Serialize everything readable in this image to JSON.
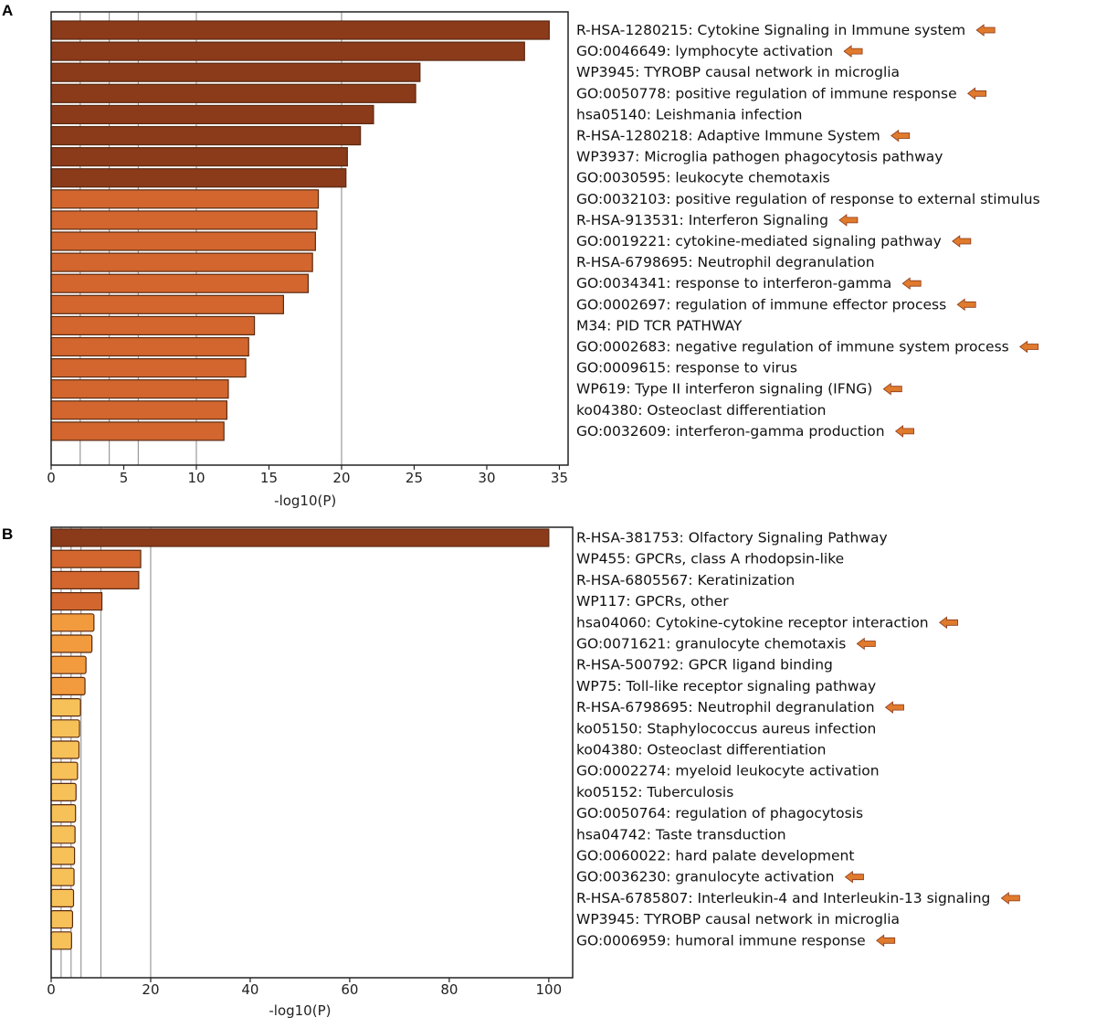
{
  "panels": {
    "a_letter": "A",
    "b_letter": "B"
  },
  "colors": {
    "dark": "#8b3a1a",
    "mid": "#d2662e",
    "light": "#f29b3e",
    "pale": "#f7c159",
    "arrow": "#e07a2c",
    "grid": "#9a9a9a"
  },
  "chart_data": [
    {
      "type": "bar",
      "orientation": "horizontal",
      "panel": "A",
      "xlabel": "-log10(P)",
      "xlim": [
        0,
        35.6
      ],
      "xticks": [
        0,
        5,
        10,
        15,
        20,
        25,
        30,
        35
      ],
      "gridlines": [
        2,
        4,
        6,
        10,
        20
      ],
      "categories": [
        "R-HSA-1280215: Cytokine Signaling in Immune system",
        "GO:0046649: lymphocyte activation",
        "WP3945: TYROBP causal network in microglia",
        "GO:0050778: positive regulation of immune response",
        "hsa05140: Leishmania infection",
        "R-HSA-1280218: Adaptive Immune System",
        "WP3937: Microglia pathogen phagocytosis pathway",
        "GO:0030595: leukocyte chemotaxis",
        "GO:0032103: positive regulation of response to external stimulus",
        "R-HSA-913531: Interferon Signaling",
        "GO:0019221: cytokine-mediated signaling pathway",
        "R-HSA-6798695: Neutrophil degranulation",
        "GO:0034341: response to interferon-gamma",
        "GO:0002697: regulation of immune effector process",
        "M34: PID TCR PATHWAY",
        "GO:0002683: negative regulation of immune system process",
        "GO:0009615: response to virus",
        "WP619: Type II interferon signaling (IFNG)",
        "ko04380: Osteoclast differentiation",
        "GO:0032609: interferon-gamma production"
      ],
      "values": [
        34.3,
        32.6,
        25.4,
        25.1,
        22.2,
        21.3,
        20.4,
        20.3,
        18.4,
        18.3,
        18.2,
        18.0,
        17.7,
        16.0,
        14.0,
        13.6,
        13.4,
        12.2,
        12.1,
        11.9
      ],
      "color_class": [
        "dark",
        "dark",
        "dark",
        "dark",
        "dark",
        "dark",
        "dark",
        "dark",
        "mid",
        "mid",
        "mid",
        "mid",
        "mid",
        "mid",
        "mid",
        "mid",
        "mid",
        "mid",
        "mid",
        "mid"
      ],
      "arrow": [
        true,
        true,
        false,
        true,
        false,
        true,
        false,
        false,
        false,
        true,
        true,
        false,
        true,
        true,
        false,
        true,
        false,
        true,
        false,
        true
      ]
    },
    {
      "type": "bar",
      "orientation": "horizontal",
      "panel": "B",
      "xlabel": "-log10(P)",
      "xlim": [
        0,
        104.8
      ],
      "xticks": [
        0,
        20,
        40,
        60,
        80,
        100
      ],
      "gridlines": [
        2,
        4,
        6,
        10,
        20
      ],
      "categories": [
        "R-HSA-381753: Olfactory Signaling Pathway",
        "WP455: GPCRs, class A rhodopsin-like",
        "R-HSA-6805567: Keratinization",
        "WP117: GPCRs, other",
        "hsa04060: Cytokine-cytokine receptor interaction",
        "GO:0071621: granulocyte chemotaxis",
        "R-HSA-500792: GPCR ligand binding",
        "WP75: Toll-like receptor signaling pathway",
        "R-HSA-6798695: Neutrophil degranulation",
        "ko05150: Staphylococcus aureus infection",
        "ko04380: Osteoclast differentiation",
        "GO:0002274: myeloid leukocyte activation",
        "ko05152: Tuberculosis",
        "GO:0050764: regulation of phagocytosis",
        "hsa04742: Taste transduction",
        "GO:0060022: hard palate development",
        "GO:0036230: granulocyte activation",
        "R-HSA-6785807: Interleukin-4 and Interleukin-13 signaling",
        "WP3945: TYROBP causal network in microglia",
        "GO:0006959: humoral immune response"
      ],
      "values": [
        100,
        18.0,
        17.6,
        10.2,
        8.6,
        8.2,
        7.0,
        6.8,
        5.9,
        5.7,
        5.6,
        5.3,
        5.0,
        4.9,
        4.8,
        4.7,
        4.6,
        4.5,
        4.3,
        4.1
      ],
      "color_class": [
        "dark",
        "mid",
        "mid",
        "mid",
        "light",
        "light",
        "light",
        "light",
        "pale",
        "pale",
        "pale",
        "pale",
        "pale",
        "pale",
        "pale",
        "pale",
        "pale",
        "pale",
        "pale",
        "pale"
      ],
      "arrow": [
        false,
        false,
        false,
        false,
        true,
        true,
        false,
        false,
        true,
        false,
        false,
        false,
        false,
        false,
        false,
        false,
        true,
        true,
        false,
        true
      ]
    }
  ]
}
